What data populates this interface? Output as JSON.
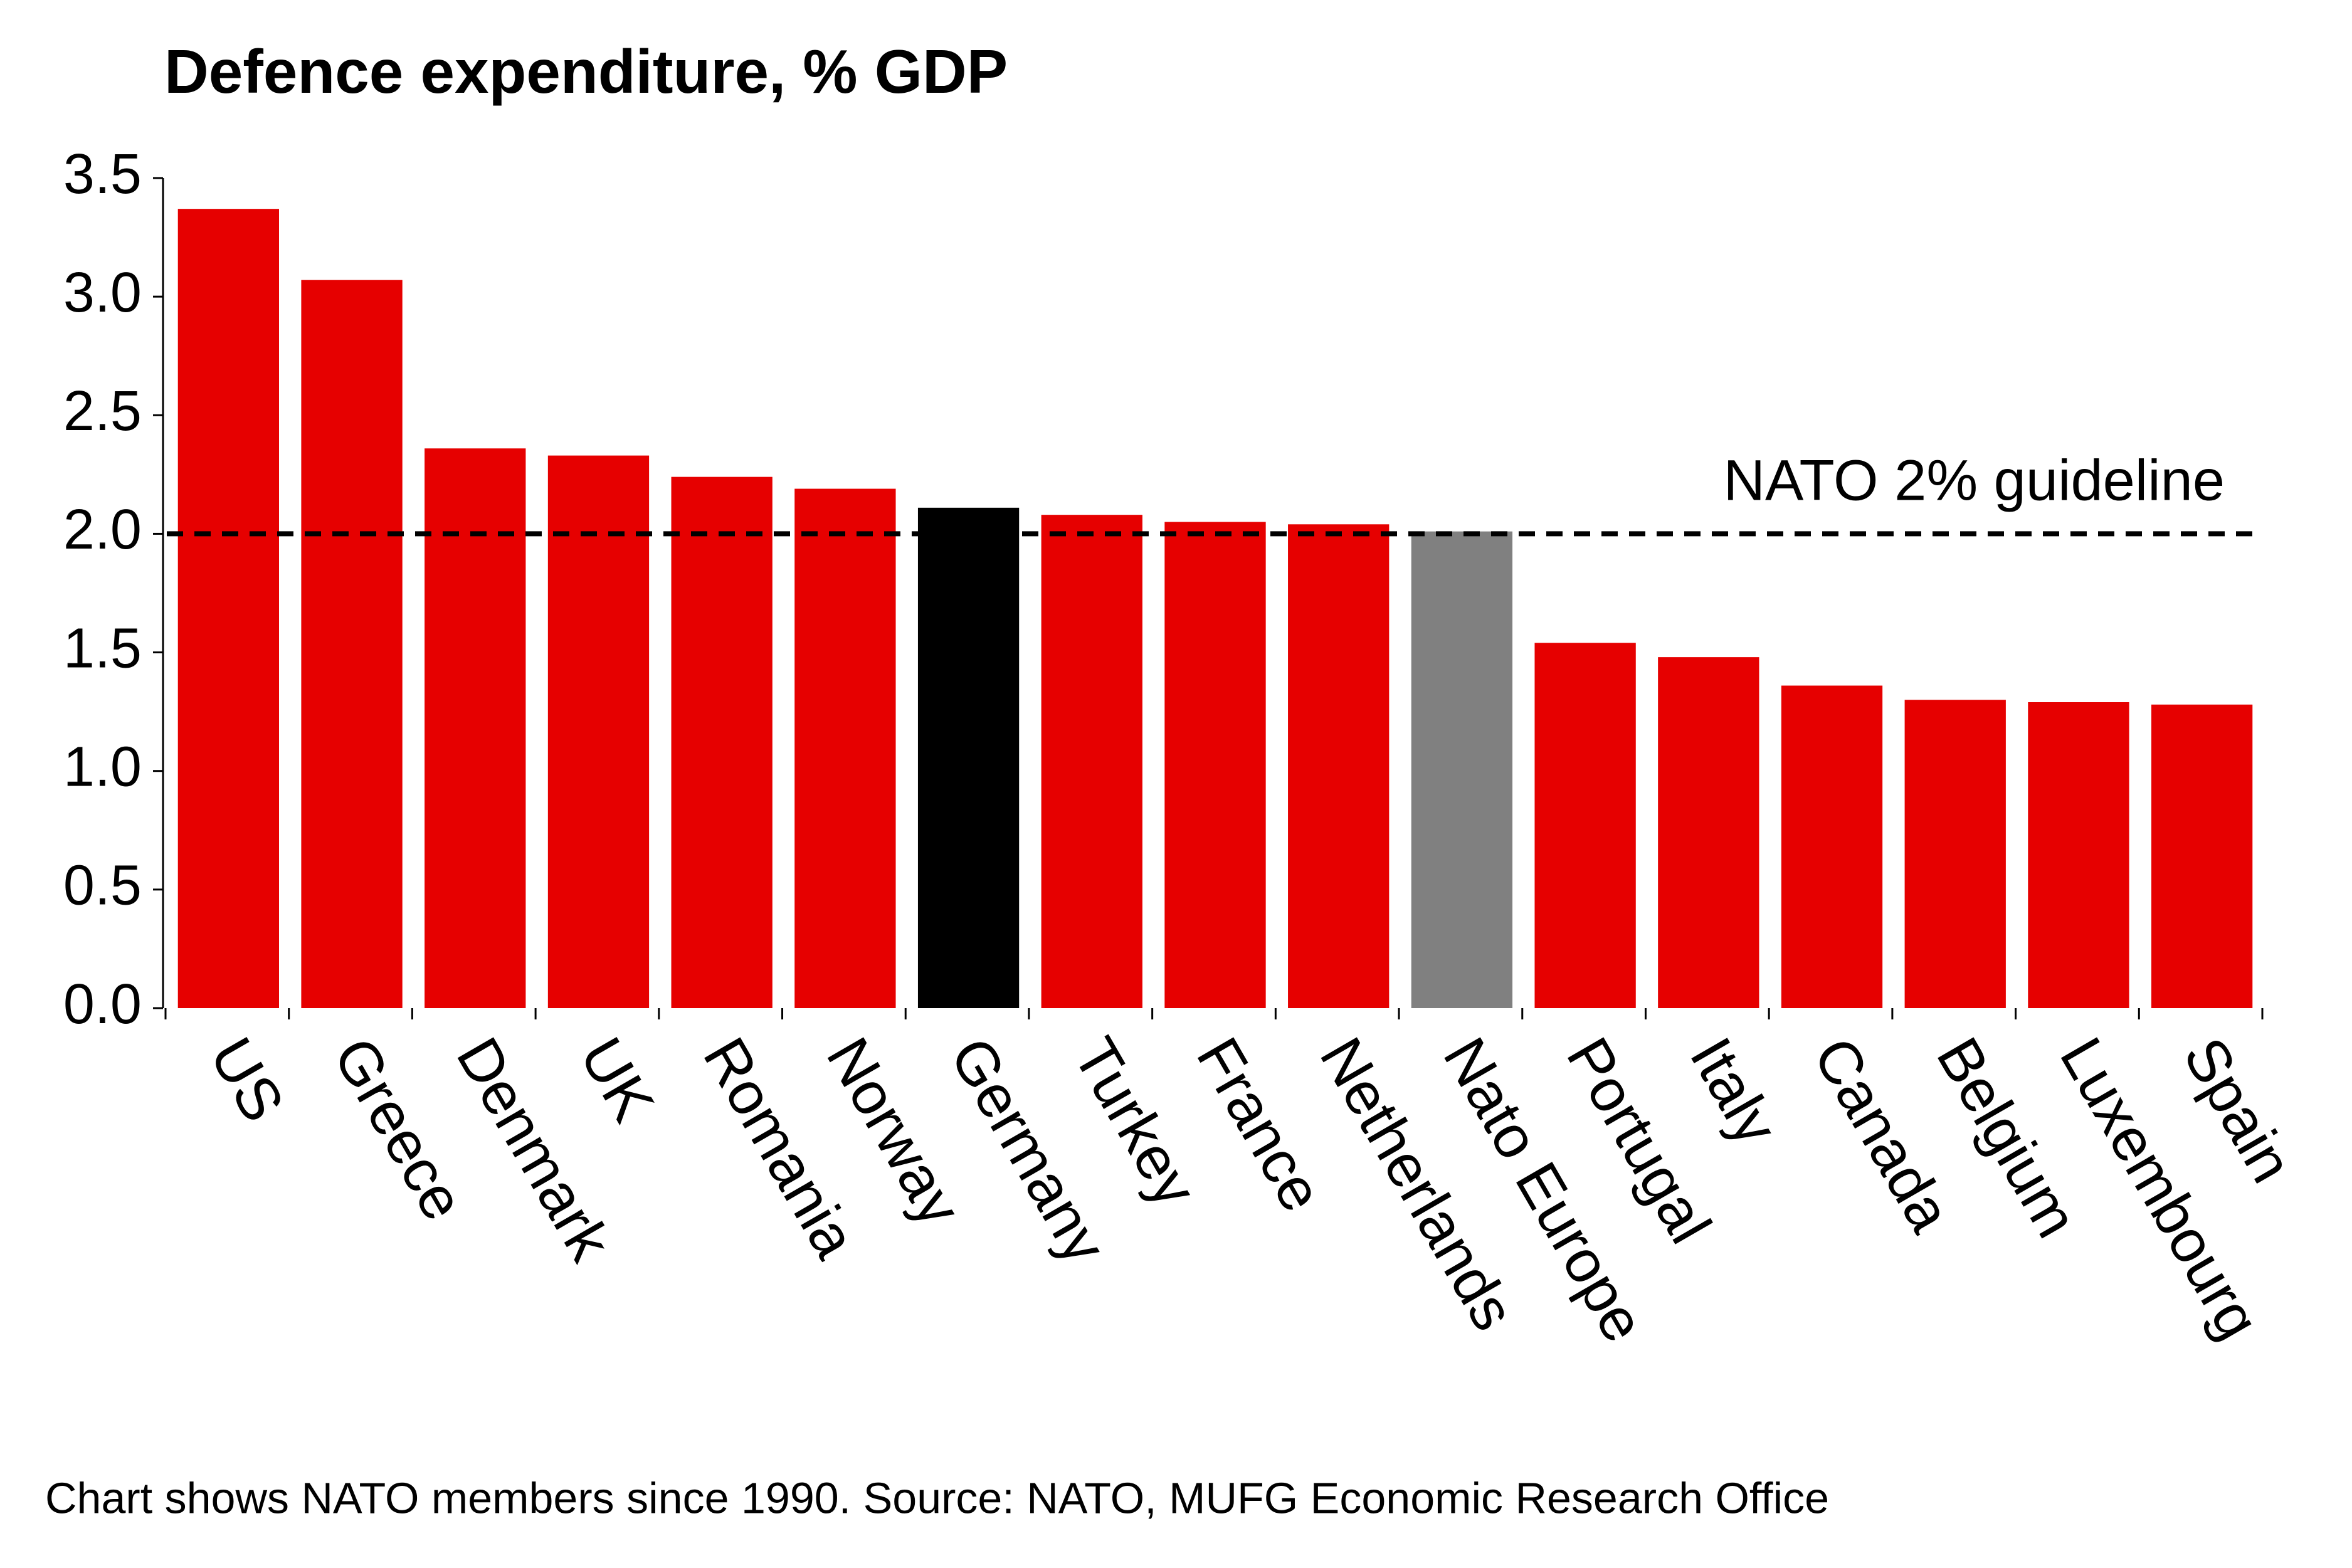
{
  "chart_data": {
    "type": "bar",
    "title": "Defence expenditure, % GDP",
    "categories": [
      "US",
      "Greece",
      "Denmark",
      "UK",
      "Romania",
      "Norway",
      "Germany",
      "Turkey",
      "France",
      "Netherlands",
      "Nato Europe",
      "Portugal",
      "Italy",
      "Canada",
      "Belgium",
      "Luxembourg",
      "Spain"
    ],
    "values": [
      3.37,
      3.07,
      2.36,
      2.33,
      2.24,
      2.19,
      2.11,
      2.08,
      2.05,
      2.04,
      2.01,
      1.54,
      1.48,
      1.36,
      1.3,
      1.29,
      1.28
    ],
    "colors": [
      "#e60000",
      "#e60000",
      "#e60000",
      "#e60000",
      "#e60000",
      "#e60000",
      "#000000",
      "#e60000",
      "#e60000",
      "#e60000",
      "#808080",
      "#e60000",
      "#e60000",
      "#e60000",
      "#e60000",
      "#e60000",
      "#e60000"
    ],
    "ylim": [
      0,
      3.5
    ],
    "yticks": [
      {
        "value": 0,
        "label": "0.0"
      },
      0.5,
      {
        "value": 1,
        "label": "1.0"
      },
      1.5,
      {
        "value": 2,
        "label": "2.0"
      },
      2.5,
      {
        "value": 3,
        "label": "3.0"
      },
      3.5
    ],
    "grid": false,
    "reference_line": {
      "value": 2,
      "label": "NATO 2% guideline"
    },
    "footnote": "Chart shows NATO members since 1990. Source: NATO, MUFG Economic Research Office"
  }
}
